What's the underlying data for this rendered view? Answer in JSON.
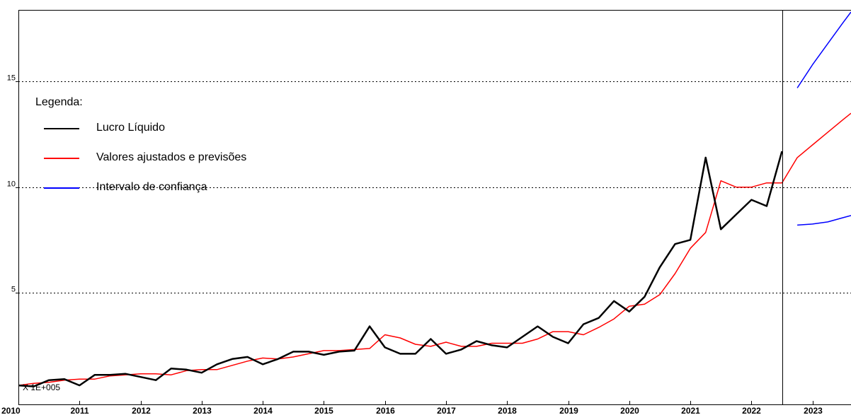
{
  "chart_data": {
    "type": "line",
    "scale_note": "X 1E+005",
    "legend": {
      "title": "Legenda:",
      "entries": [
        {
          "label": "Lucro Líquido",
          "color": "#000000"
        },
        {
          "label": "Valores ajustados e previsões",
          "color": "#ff0000"
        },
        {
          "label": "Intervalo de confiança",
          "color": "#0000ff"
        }
      ]
    },
    "y_ticks": [
      5,
      10,
      15
    ],
    "ylim": [
      -0.3,
      18.4
    ],
    "x_ticks": [
      "2010",
      "2011",
      "2012",
      "2013",
      "2014",
      "2015",
      "2016",
      "2017",
      "2018",
      "2019",
      "2020",
      "2021",
      "2022",
      "2023"
    ],
    "xlim": [
      2010,
      2023.63
    ],
    "forecast_start": 2022.5,
    "grid": "horizontal dotted",
    "series": [
      {
        "name": "Lucro Líquido",
        "color": "#000000",
        "x": [
          2010.0,
          2010.25,
          2010.5,
          2010.75,
          2011.0,
          2011.25,
          2011.5,
          2011.75,
          2012.0,
          2012.25,
          2012.5,
          2012.75,
          2013.0,
          2013.25,
          2013.5,
          2013.75,
          2014.0,
          2014.25,
          2014.5,
          2014.75,
          2015.0,
          2015.25,
          2015.5,
          2015.75,
          2016.0,
          2016.25,
          2016.5,
          2016.75,
          2017.0,
          2017.25,
          2017.5,
          2017.75,
          2018.0,
          2018.25,
          2018.5,
          2018.75,
          2019.0,
          2019.25,
          2019.5,
          2019.75,
          2020.0,
          2020.25,
          2020.5,
          2020.75,
          2021.0,
          2021.25,
          2021.5,
          2021.75,
          2022.0,
          2022.25,
          2022.5
        ],
        "values": [
          0.6,
          0.55,
          0.85,
          0.9,
          0.6,
          1.1,
          1.1,
          1.15,
          1.0,
          0.85,
          1.4,
          1.35,
          1.2,
          1.6,
          1.85,
          1.95,
          1.6,
          1.85,
          2.2,
          2.2,
          2.05,
          2.2,
          2.25,
          3.4,
          2.4,
          2.1,
          2.1,
          2.8,
          2.1,
          2.3,
          2.7,
          2.5,
          2.4,
          2.9,
          3.4,
          2.9,
          2.6,
          3.5,
          3.8,
          4.6,
          4.1,
          4.8,
          6.2,
          7.3,
          7.5,
          11.4,
          8.0,
          8.7,
          9.4,
          9.1,
          11.7
        ]
      },
      {
        "name": "Valores ajustados e previsões",
        "color": "#ff0000",
        "x": [
          2010.0,
          2010.25,
          2010.5,
          2010.75,
          2011.0,
          2011.25,
          2011.5,
          2011.75,
          2012.0,
          2012.25,
          2012.5,
          2012.75,
          2013.0,
          2013.25,
          2013.5,
          2013.75,
          2014.0,
          2014.25,
          2014.5,
          2014.75,
          2015.0,
          2015.25,
          2015.5,
          2015.75,
          2016.0,
          2016.25,
          2016.5,
          2016.75,
          2017.0,
          2017.25,
          2017.5,
          2017.75,
          2018.0,
          2018.25,
          2018.5,
          2018.75,
          2019.0,
          2019.25,
          2019.5,
          2019.75,
          2020.0,
          2020.25,
          2020.5,
          2020.75,
          2021.0,
          2021.25,
          2021.5,
          2021.75,
          2022.0,
          2022.25,
          2022.5,
          2022.75,
          2023.0,
          2023.25,
          2023.5,
          2023.63
        ],
        "values": [
          0.6,
          0.7,
          0.75,
          0.85,
          0.9,
          0.9,
          1.05,
          1.1,
          1.15,
          1.15,
          1.1,
          1.3,
          1.35,
          1.35,
          1.55,
          1.75,
          1.9,
          1.85,
          1.95,
          2.1,
          2.25,
          2.25,
          2.3,
          2.35,
          3.0,
          2.85,
          2.55,
          2.45,
          2.65,
          2.45,
          2.45,
          2.6,
          2.6,
          2.6,
          2.8,
          3.15,
          3.15,
          3.0,
          3.35,
          3.75,
          4.35,
          4.45,
          4.9,
          5.9,
          7.1,
          7.85,
          10.3,
          10.0,
          10.0,
          10.2,
          10.2,
          11.4,
          12.0,
          12.6,
          13.2,
          13.5
        ]
      },
      {
        "name": "Intervalo de confiança",
        "color": "#0000ff",
        "x": [
          2022.75,
          2023.0,
          2023.25,
          2023.5,
          2023.63
        ],
        "upper": [
          14.7,
          15.8,
          16.8,
          17.8,
          18.3
        ],
        "lower": [
          8.2,
          8.25,
          8.35,
          8.55,
          8.65
        ]
      }
    ]
  }
}
